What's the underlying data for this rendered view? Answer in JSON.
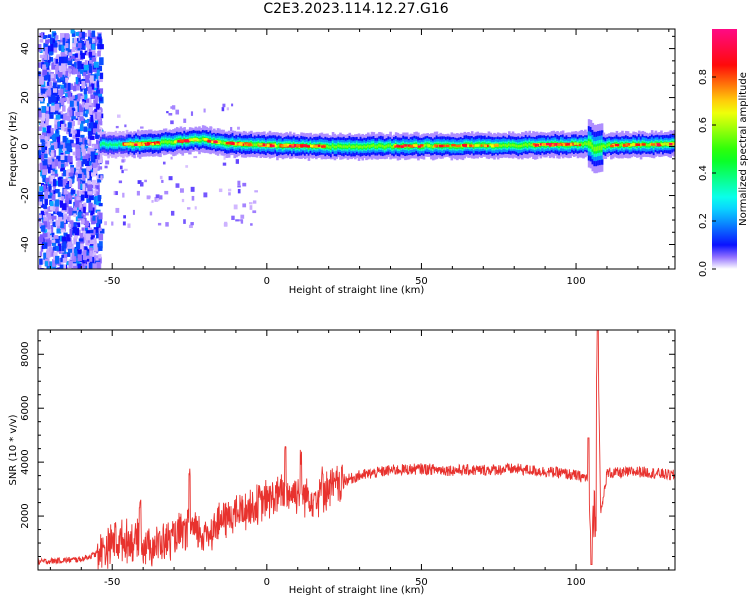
{
  "figure": {
    "title": "C2E3.2023.114.12.27.G16"
  },
  "chart_data": [
    {
      "type": "heatmap",
      "title": "C2E3.2023.114.12.27.G16",
      "xlabel": "Height of straight line (km)",
      "ylabel": "Frequency (Hz)",
      "xlim": [
        -74,
        132
      ],
      "ylim": [
        -50,
        48
      ],
      "xticks": [
        -50,
        0,
        50,
        100
      ],
      "yticks": [
        -40,
        -20,
        0,
        20,
        40
      ],
      "colorbar": {
        "label": "Normalized spectral amplitude",
        "range": [
          0,
          1
        ],
        "ticks": [
          "0.0",
          "0.2",
          "0.4",
          "0.6",
          "0.8"
        ],
        "colormap": "rainbow"
      },
      "features": [
        {
          "name": "noise region",
          "x_range": [
            -74,
            -54
          ],
          "frequency_range": [
            -50,
            48
          ],
          "amplitude": [
            0.1,
            0.35
          ]
        },
        {
          "name": "central band",
          "x_range": [
            -54,
            132
          ],
          "center_frequency": 0,
          "halfwidth_hz": 4,
          "peak_amplitude": 0.95
        },
        {
          "name": "disturbance",
          "x": 106,
          "frequency_range": [
            -5,
            5
          ]
        }
      ],
      "band_center_hz": [
        {
          "x": -55,
          "f": 1
        },
        {
          "x": -40,
          "f": 1
        },
        {
          "x": -30,
          "f": 2
        },
        {
          "x": -22,
          "f": 3
        },
        {
          "x": -15,
          "f": 1.5
        },
        {
          "x": 0,
          "f": 0.5
        },
        {
          "x": 20,
          "f": 0
        },
        {
          "x": 80,
          "f": 0.5
        },
        {
          "x": 104,
          "f": 1
        },
        {
          "x": 106,
          "f": -1
        },
        {
          "x": 110,
          "f": 0.5
        },
        {
          "x": 132,
          "f": 1
        }
      ],
      "grid": false
    },
    {
      "type": "line",
      "xlabel": "Height of straight line (km)",
      "ylabel": "SNR (10 * v/v)",
      "xlim": [
        -74,
        132
      ],
      "ylim": [
        0,
        8900
      ],
      "xticks": [
        -50,
        0,
        50,
        100
      ],
      "yticks": [
        2000,
        4000,
        6000,
        8000
      ],
      "series_color": "#e8322e",
      "series": [
        {
          "x": [
            -74,
            -60,
            -55,
            -50,
            -45,
            -40,
            -35,
            -30,
            -25,
            -20,
            -15,
            -10,
            -5,
            0,
            5,
            10,
            15,
            20,
            25,
            30,
            40,
            50,
            60,
            70,
            80,
            90,
            95,
            100,
            104,
            105,
            106,
            107,
            108,
            110,
            115,
            120,
            125,
            132
          ],
          "values": [
            300,
            400,
            600,
            1000,
            1100,
            1000,
            900,
            1200,
            1500,
            1300,
            1800,
            2100,
            2300,
            2600,
            2800,
            2900,
            2700,
            3000,
            3300,
            3500,
            3700,
            3750,
            3700,
            3700,
            3750,
            3650,
            3600,
            3500,
            3400,
            200,
            4500,
            8900,
            2000,
            3600,
            3600,
            3650,
            3600,
            3500
          ]
        }
      ],
      "annotations": [
        {
          "x": -49,
          "y": 1800
        },
        {
          "x": -41,
          "y": 2700
        },
        {
          "x": -25,
          "y": 4100
        },
        {
          "x": 6,
          "y": 5000
        },
        {
          "x": 11,
          "y": 4500
        },
        {
          "x": 18,
          "y": 3900
        },
        {
          "x": 104,
          "y": 4900
        },
        {
          "x": 105,
          "y": 200
        },
        {
          "x": 107,
          "y": 8900
        }
      ],
      "grid": false
    }
  ]
}
